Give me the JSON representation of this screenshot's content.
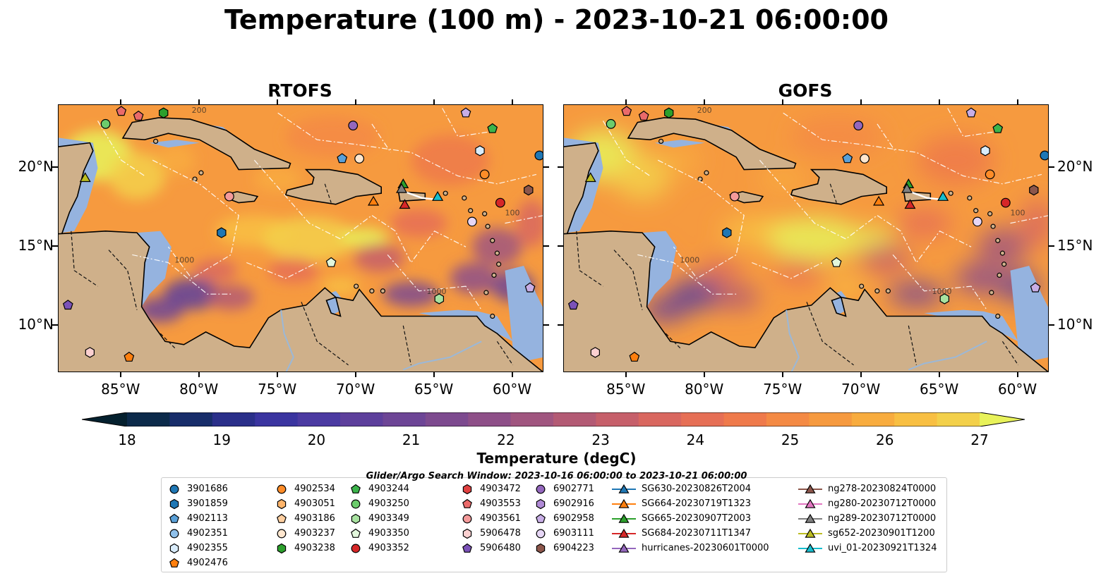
{
  "title": "Temperature (100 m) - 2023-10-21 06:00:00",
  "panels": [
    {
      "title": "RTOFS",
      "id": "rtofs"
    },
    {
      "title": "GOFS",
      "id": "gofs"
    }
  ],
  "axes": {
    "lon_ticks": [
      "85°W",
      "80°W",
      "75°W",
      "70°W",
      "65°W",
      "60°W"
    ],
    "lat_ticks": [
      "20°N",
      "15°N",
      "10°N"
    ],
    "lon_range": [
      -89,
      -58
    ],
    "lat_range": [
      7,
      24
    ]
  },
  "colorbar": {
    "title": "Temperature (degC)",
    "ticks": [
      "18",
      "19",
      "20",
      "21",
      "22",
      "23",
      "24",
      "25",
      "26",
      "27"
    ],
    "range": [
      18,
      27
    ],
    "colors": [
      "#04202e",
      "#0b2a4a",
      "#172d6a",
      "#2a2f8a",
      "#3a34a0",
      "#4b3aa2",
      "#5d3f9c",
      "#6d4596",
      "#7d4a8f",
      "#8e4f88",
      "#a0557f",
      "#b35a74",
      "#c65f6a",
      "#d9675f",
      "#e66f55",
      "#ef7a4b",
      "#f48a44",
      "#f69a3f",
      "#f8ac3e",
      "#f8bf42",
      "#f3d04a",
      "#e8f25a"
    ]
  },
  "legend": {
    "title": "Glider/Argo Search Window: 2023-10-16 06:00:00 to 2023-10-21 06:00:00",
    "columns": [
      [
        {
          "label": "3901686",
          "shape": "circle",
          "color": "#1f77b4"
        },
        {
          "label": "3901859",
          "shape": "hexagon",
          "color": "#1f77b4"
        },
        {
          "label": "4902113",
          "shape": "pentagon",
          "color": "#5aa0d8"
        },
        {
          "label": "4902351",
          "shape": "circle",
          "color": "#8fc0ea"
        },
        {
          "label": "4902355",
          "shape": "hexagon",
          "color": "#d9ecfb"
        },
        {
          "label": "4902476",
          "shape": "pentagon",
          "color": "#ff7f0e"
        }
      ],
      [
        {
          "label": "4902534",
          "shape": "circle",
          "color": "#ff8c28"
        },
        {
          "label": "4903051",
          "shape": "hexagon",
          "color": "#ffb56b"
        },
        {
          "label": "4903186",
          "shape": "pentagon",
          "color": "#ffcfa0"
        },
        {
          "label": "4903237",
          "shape": "circle",
          "color": "#ffe7cf"
        },
        {
          "label": "4903238",
          "shape": "hexagon",
          "color": "#2ca02c"
        }
      ],
      [
        {
          "label": "4903244",
          "shape": "pentagon",
          "color": "#3cb44b"
        },
        {
          "label": "4903250",
          "shape": "circle",
          "color": "#6ccc6c"
        },
        {
          "label": "4903349",
          "shape": "hexagon",
          "color": "#a8e2a0"
        },
        {
          "label": "4903350",
          "shape": "pentagon",
          "color": "#e2f7dc"
        },
        {
          "label": "4903352",
          "shape": "circle",
          "color": "#d62728"
        }
      ],
      [
        {
          "label": "4903472",
          "shape": "hexagon",
          "color": "#e04040"
        },
        {
          "label": "4903553",
          "shape": "pentagon",
          "color": "#ea6a6a"
        },
        {
          "label": "4903561",
          "shape": "circle",
          "color": "#f49a9a"
        },
        {
          "label": "5906478",
          "shape": "hexagon",
          "color": "#fbd0d0"
        },
        {
          "label": "5906480",
          "shape": "pentagon",
          "color": "#7b52b8"
        }
      ],
      [
        {
          "label": "6902771",
          "shape": "circle",
          "color": "#9467bd"
        },
        {
          "label": "6902916",
          "shape": "hexagon",
          "color": "#b08ad6"
        },
        {
          "label": "6902958",
          "shape": "pentagon",
          "color": "#c8aee6"
        },
        {
          "label": "6903111",
          "shape": "circle",
          "color": "#e6d6f5"
        },
        {
          "label": "6904223",
          "shape": "hexagon",
          "color": "#8c564b"
        }
      ],
      [
        {
          "label": "SG630-20230826T2004",
          "shape": "triangle",
          "color": "#1f77b4"
        },
        {
          "label": "SG664-20230719T1323",
          "shape": "triangle",
          "color": "#ff7f0e"
        },
        {
          "label": "SG665-20230907T2003",
          "shape": "triangle",
          "color": "#2ca02c"
        },
        {
          "label": "SG684-20230711T1347",
          "shape": "triangle",
          "color": "#d62728"
        },
        {
          "label": "hurricanes-20230601T0000",
          "shape": "triangle",
          "color": "#9467bd"
        }
      ],
      [
        {
          "label": "ng278-20230824T0000",
          "shape": "triangle",
          "color": "#8c564b"
        },
        {
          "label": "ng280-20230712T0000",
          "shape": "triangle",
          "color": "#e377c2"
        },
        {
          "label": "ng289-20230712T0000",
          "shape": "triangle",
          "color": "#7f7f7f"
        },
        {
          "label": "sg652-20230901T1200",
          "shape": "triangle",
          "color": "#bcbd22"
        },
        {
          "label": "uvi_01-20230921T1324",
          "shape": "triangle",
          "color": "#17becf"
        }
      ]
    ]
  },
  "markers": [
    {
      "label": "4903250",
      "lon": -86.0,
      "lat": 22.8,
      "shape": "circle",
      "color": "#6ccc6c"
    },
    {
      "label": "4903553",
      "lon": -85.0,
      "lat": 23.6,
      "shape": "pentagon",
      "color": "#ea6a6a"
    },
    {
      "label": "4903553",
      "lon": -83.9,
      "lat": 23.3,
      "shape": "pentagon",
      "color": "#ea6a6a"
    },
    {
      "label": "4903238",
      "lon": -82.3,
      "lat": 23.5,
      "shape": "hexagon",
      "color": "#2ca02c"
    },
    {
      "label": "6902771",
      "lon": -70.2,
      "lat": 22.7,
      "shape": "circle",
      "color": "#9467bd"
    },
    {
      "label": "6902958",
      "lon": -63.0,
      "lat": 23.5,
      "shape": "pentagon",
      "color": "#c8aee6"
    },
    {
      "label": "4903244",
      "lon": -61.3,
      "lat": 22.5,
      "shape": "pentagon",
      "color": "#3cb44b"
    },
    {
      "label": "4902355",
      "lon": -62.1,
      "lat": 21.1,
      "shape": "hexagon",
      "color": "#d9ecfb"
    },
    {
      "label": "3901686",
      "lon": -58.3,
      "lat": 20.8,
      "shape": "circle",
      "color": "#1f77b4"
    },
    {
      "label": "4902113",
      "lon": -70.9,
      "lat": 20.6,
      "shape": "pentagon",
      "color": "#5aa0d8"
    },
    {
      "label": "4903237",
      "lon": -69.8,
      "lat": 20.6,
      "shape": "circle",
      "color": "#ffe7cf"
    },
    {
      "label": "4902534",
      "lon": -61.8,
      "lat": 19.6,
      "shape": "circle",
      "color": "#ff8c28"
    },
    {
      "label": "6904223",
      "lon": -59.0,
      "lat": 18.6,
      "shape": "hexagon",
      "color": "#8c564b"
    },
    {
      "label": "4903352",
      "lon": -60.8,
      "lat": 17.8,
      "shape": "circle",
      "color": "#d62728"
    },
    {
      "label": "4903561",
      "lon": -78.1,
      "lat": 18.2,
      "shape": "circle",
      "color": "#f49a9a"
    },
    {
      "label": "3901859",
      "lon": -78.6,
      "lat": 15.9,
      "shape": "hexagon",
      "color": "#1f77b4"
    },
    {
      "label": "6903111",
      "lon": -62.6,
      "lat": 16.6,
      "shape": "circle",
      "color": "#e6d6f5"
    },
    {
      "label": "4903350",
      "lon": -71.6,
      "lat": 14.0,
      "shape": "pentagon",
      "color": "#e2f7dc"
    },
    {
      "label": "6902958",
      "lon": -58.9,
      "lat": 12.4,
      "shape": "pentagon",
      "color": "#c8aee6"
    },
    {
      "label": "4903349",
      "lon": -64.7,
      "lat": 11.7,
      "shape": "hexagon",
      "color": "#a8e2a0"
    },
    {
      "label": "5906480",
      "lon": -88.4,
      "lat": 11.3,
      "shape": "pentagon",
      "color": "#7b52b8"
    },
    {
      "label": "5906478",
      "lon": -87.0,
      "lat": 8.3,
      "shape": "hexagon",
      "color": "#fbd0d0"
    },
    {
      "label": "4902476",
      "lon": -84.5,
      "lat": 8.0,
      "shape": "pentagon",
      "color": "#ff7f0e"
    },
    {
      "label": "sg652-20230901T1200",
      "lon": -87.3,
      "lat": 19.4,
      "shape": "triangle",
      "color": "#bcbd22"
    },
    {
      "label": "SG664-20230719T1323",
      "lon": -68.9,
      "lat": 17.9,
      "shape": "triangle",
      "color": "#ff7f0e"
    },
    {
      "label": "SG665-20230907T2003",
      "lon": -67.0,
      "lat": 19.0,
      "shape": "triangle",
      "color": "#2ca02c"
    },
    {
      "label": "ng289-20230712T0000",
      "lon": -67.1,
      "lat": 18.7,
      "shape": "triangle",
      "color": "#7f7f7f"
    },
    {
      "label": "SG684-20230711T1347",
      "lon": -66.9,
      "lat": 17.7,
      "shape": "triangle",
      "color": "#d62728"
    },
    {
      "label": "uvi_01-20230921T1324",
      "lon": -64.8,
      "lat": 18.2,
      "shape": "triangle",
      "color": "#17becf"
    }
  ],
  "contour_labels": [
    "1000",
    "200",
    "100"
  ],
  "style": {
    "ocean_shelf": "#95b3df",
    "land": "#cfb08a",
    "dark_pacific": "#082233"
  }
}
